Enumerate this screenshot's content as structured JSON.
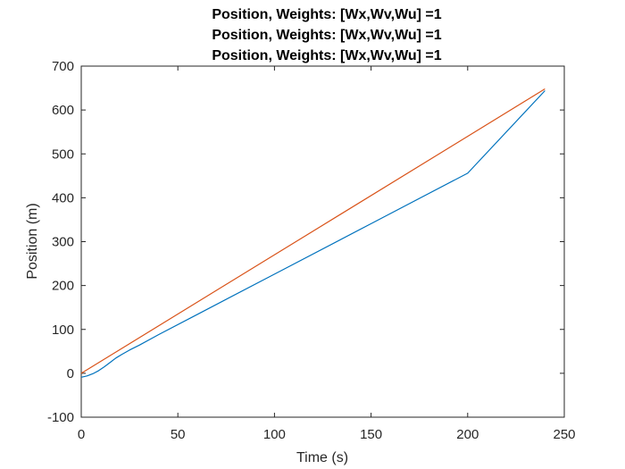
{
  "chart_data": {
    "type": "line",
    "title": [
      "Position, Weights: [Wx,Wv,Wu] =1",
      "Position, Weights: [Wx,Wv,Wu] =1",
      "Position, Weights: [Wx,Wv,Wu] =1"
    ],
    "xlabel": "Time (s)",
    "ylabel": "Position (m)",
    "xlim": [
      0,
      250
    ],
    "ylim": [
      -100,
      700
    ],
    "xticks": [
      0,
      50,
      100,
      150,
      200,
      250
    ],
    "yticks": [
      -100,
      0,
      100,
      200,
      300,
      400,
      500,
      600,
      700
    ],
    "xtick_labels": [
      "0",
      "50",
      "100",
      "150",
      "200",
      "250"
    ],
    "ytick_labels": [
      "-100",
      "0",
      "100",
      "200",
      "300",
      "400",
      "500",
      "600",
      "700"
    ],
    "grid": false,
    "box": true,
    "series": [
      {
        "color": "#0072BD",
        "x": [
          0,
          3,
          6,
          9,
          12,
          15,
          18,
          21,
          25,
          30,
          40,
          60,
          100,
          150,
          200,
          240
        ],
        "y": [
          -9,
          -6,
          -1,
          6,
          15,
          25,
          35,
          43,
          53,
          64,
          88,
          134,
          226,
          341,
          456,
          644
        ]
      },
      {
        "color": "#D95319",
        "x": [
          0,
          240
        ],
        "y": [
          0,
          648
        ]
      }
    ]
  }
}
